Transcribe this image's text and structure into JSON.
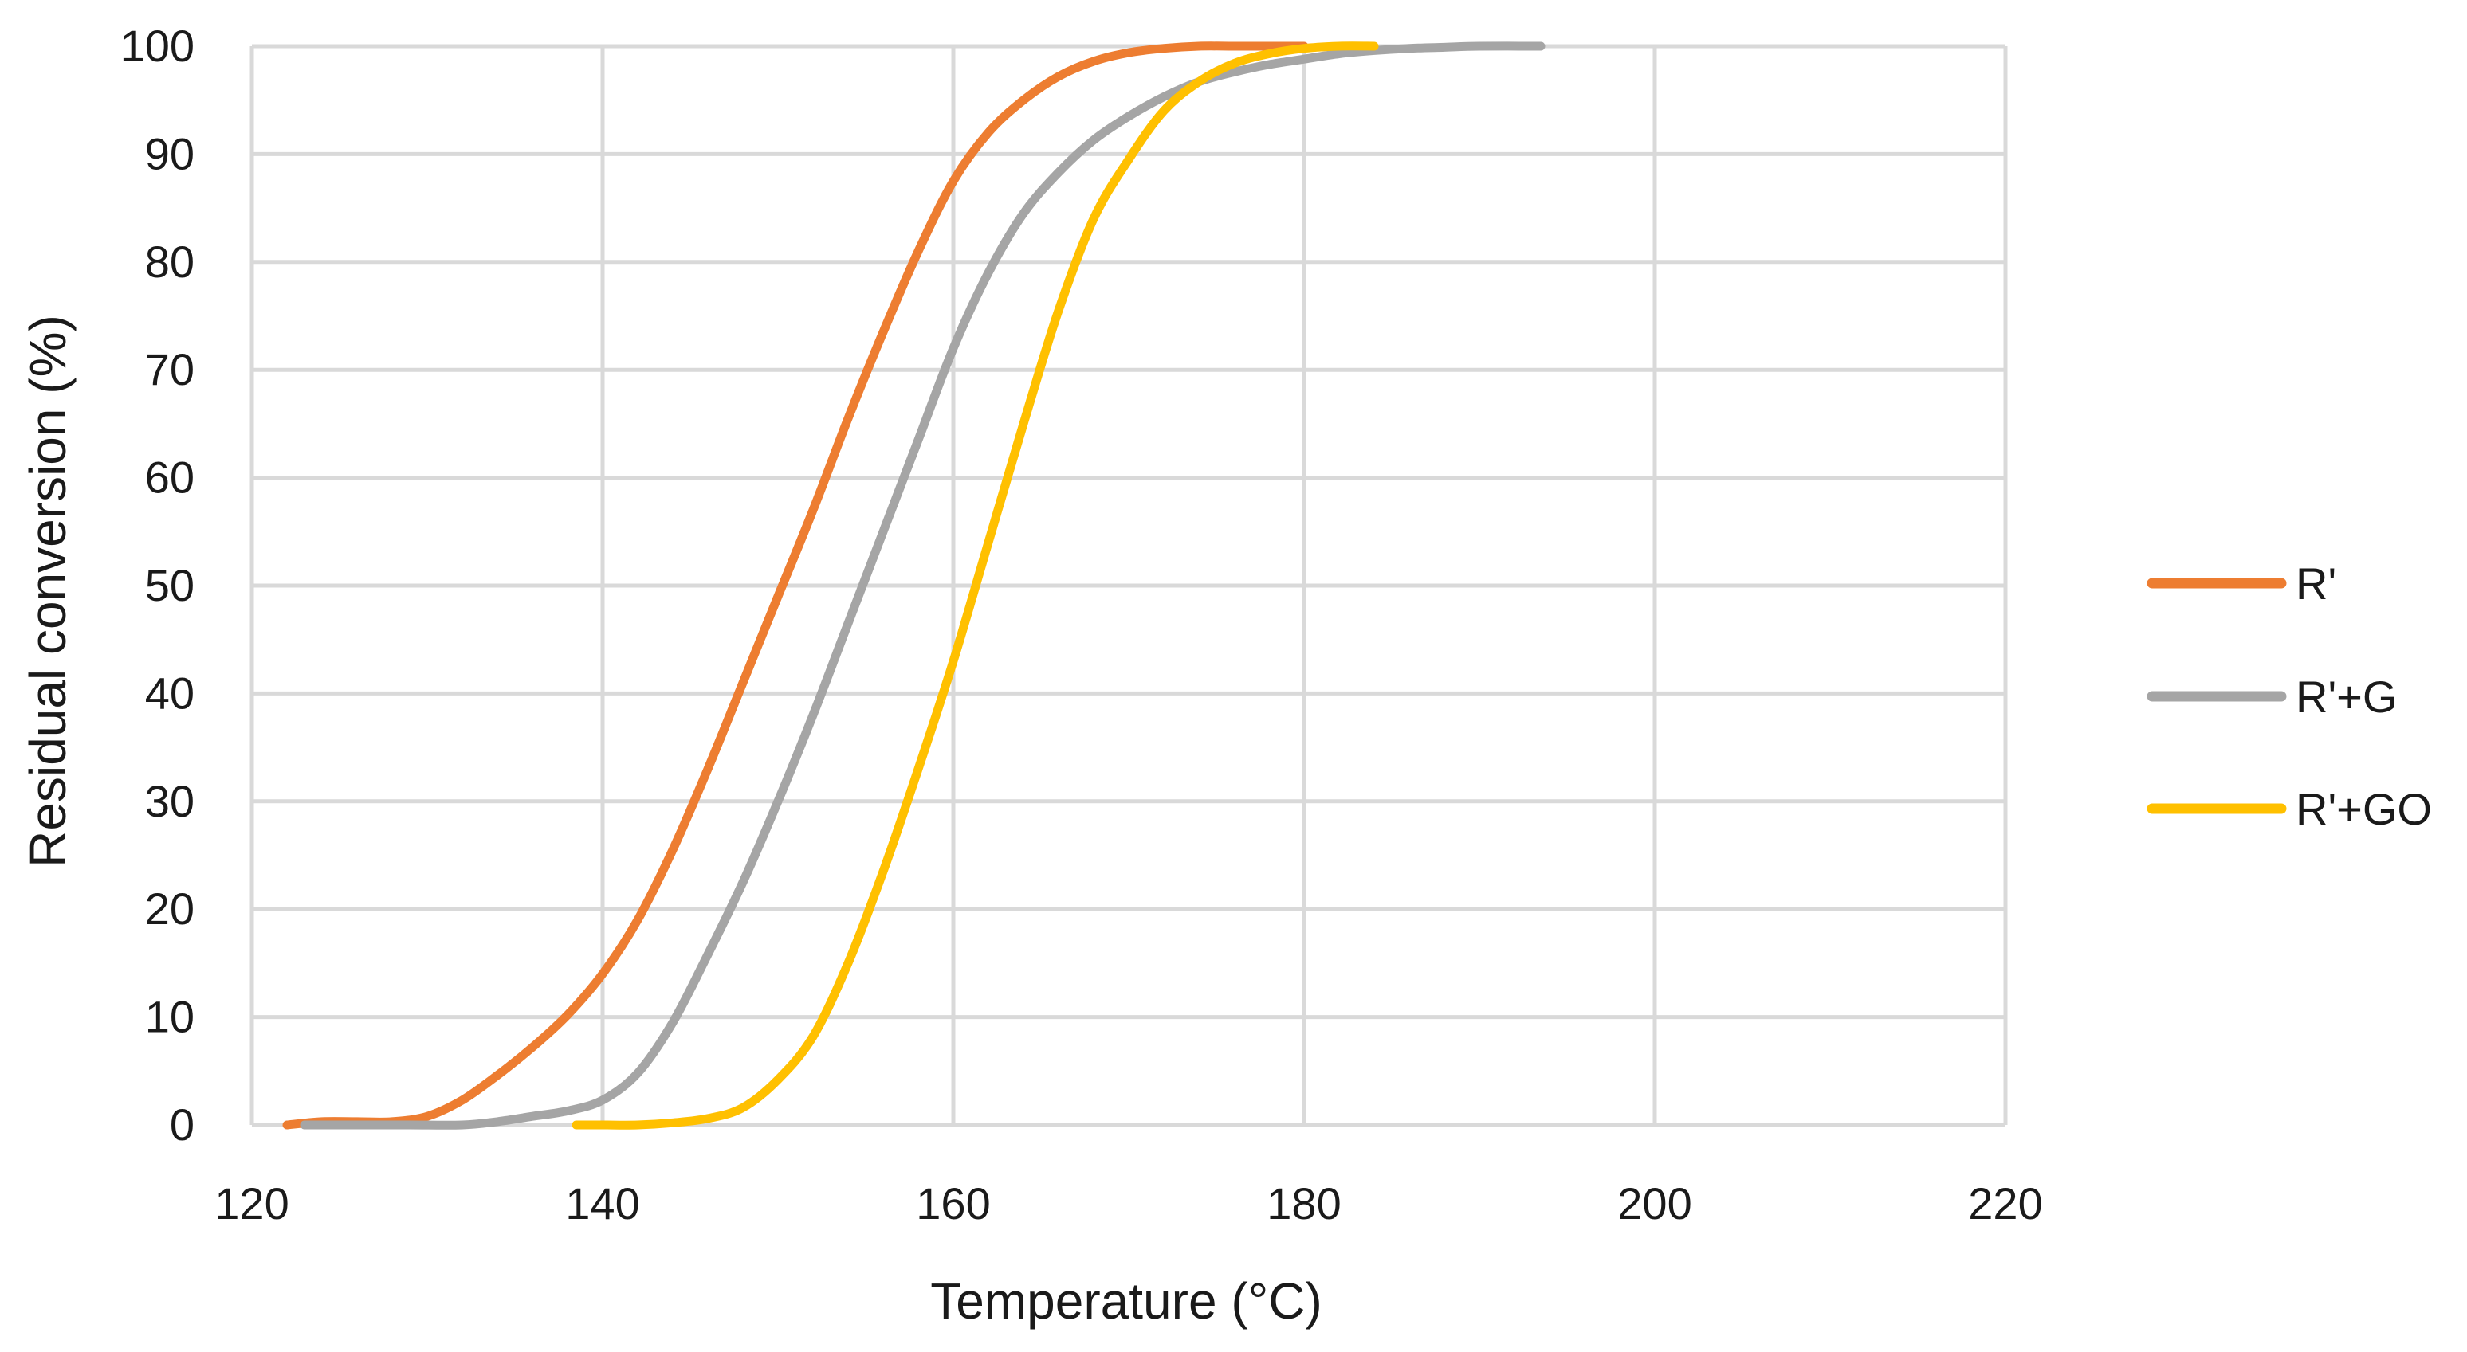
{
  "chart_data": {
    "type": "line",
    "title": "",
    "xlabel": "Temperature (°C)",
    "ylabel": "Residual conversion (%)",
    "xlim": [
      120,
      220
    ],
    "ylim": [
      0,
      100
    ],
    "x_ticks": [
      120,
      140,
      160,
      180,
      200,
      220
    ],
    "y_ticks": [
      0,
      10,
      20,
      30,
      40,
      50,
      60,
      70,
      80,
      90,
      100
    ],
    "grid": true,
    "legend_position": "right",
    "series": [
      {
        "name": "R'",
        "color": "#ED7D31",
        "x": [
          122,
          124,
          126,
          128,
          130,
          132,
          134,
          136,
          138,
          140,
          142,
          144,
          146,
          148,
          150,
          152,
          154,
          156,
          158,
          160,
          162,
          164,
          166,
          168,
          170,
          172,
          174,
          176,
          178,
          180
        ],
        "y": [
          0,
          0.3,
          0.3,
          0.3,
          0.8,
          2.3,
          4.6,
          7.2,
          10.2,
          14,
          19,
          25.5,
          33,
          41,
          49,
          57,
          65.5,
          73.5,
          81,
          87.5,
          92,
          95,
          97.2,
          98.6,
          99.4,
          99.8,
          100,
          100,
          100,
          100
        ]
      },
      {
        "name": "R'+G",
        "color": "#A5A5A5",
        "x": [
          123,
          126,
          129,
          132,
          134,
          136,
          138,
          140,
          142,
          144,
          146,
          148,
          150,
          152,
          154,
          156,
          158,
          160,
          162,
          164,
          166,
          168,
          170,
          172,
          174,
          176,
          178,
          180,
          182,
          184,
          186,
          188,
          190,
          193.5
        ],
        "y": [
          0,
          0,
          0,
          0,
          0.3,
          0.8,
          1.3,
          2.3,
          4.8,
          9.5,
          15.8,
          22.5,
          30,
          38,
          46.5,
          55,
          63.5,
          72,
          79,
          84.5,
          88.3,
          91.3,
          93.5,
          95.3,
          96.7,
          97.6,
          98.3,
          98.8,
          99.3,
          99.6,
          99.8,
          99.9,
          100,
          100
        ]
      },
      {
        "name": "R'+GO",
        "color": "#FFC000",
        "x": [
          138.5,
          140,
          142,
          144,
          146,
          148,
          150,
          152,
          154,
          156,
          158,
          160,
          162,
          164,
          166,
          168,
          170,
          172,
          174,
          176,
          178,
          180,
          182,
          184
        ],
        "y": [
          0,
          0,
          0,
          0.2,
          0.6,
          1.6,
          4.2,
          8.2,
          15,
          23.5,
          33,
          43,
          54,
          65,
          75.5,
          84,
          89.5,
          94,
          96.7,
          98.4,
          99.3,
          99.8,
          100,
          100
        ]
      }
    ]
  }
}
